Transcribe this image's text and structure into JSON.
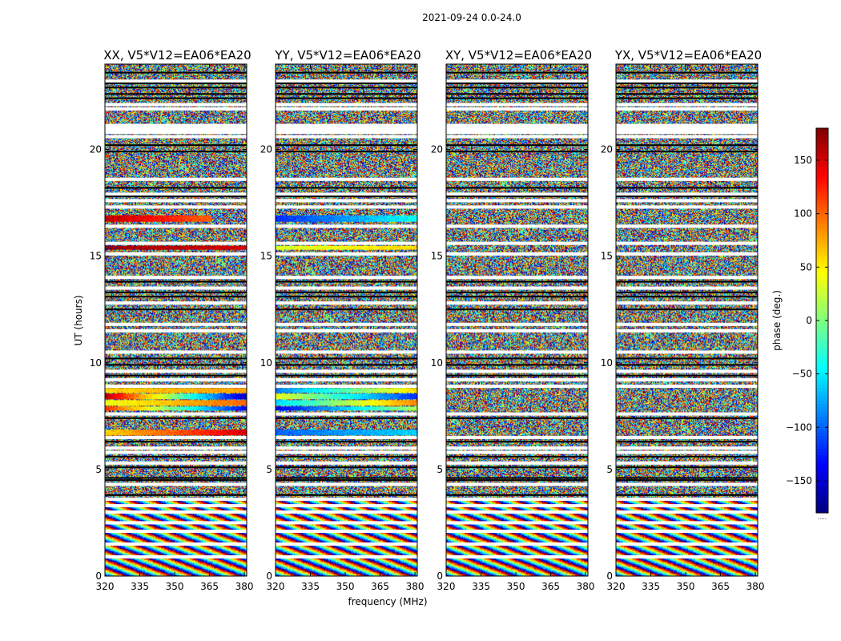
{
  "chart_data": {
    "type": "heatmap",
    "suptitle": "2021-09-24 0.0-24.0",
    "xlabel": "frequency (MHz)",
    "ylabel": "UT (hours)",
    "xlim": [
      320,
      381
    ],
    "ylim": [
      0,
      24
    ],
    "xticks": [
      320,
      335,
      350,
      365,
      380
    ],
    "yticks": [
      0,
      5,
      10,
      15,
      20
    ],
    "colormap": "jet",
    "colorbar": {
      "label": "phase (deg.)",
      "range": [
        -180,
        180
      ],
      "ticks": [
        150,
        100,
        50,
        0,
        -50,
        -100,
        -150
      ],
      "tick_labels": [
        "150",
        "100",
        "50",
        "0",
        "−50",
        "−100",
        "−150"
      ],
      "footer": "....."
    },
    "panels": [
      {
        "title": "XX, V5*V12=EA06*EA20",
        "coherent_bands": [
          {
            "ut": [
              16.6,
              16.9
            ],
            "phase_start": 160,
            "phase_end": 100,
            "freq_end": 366
          },
          {
            "ut": [
              15.3,
              15.5
            ],
            "phase_start": 170,
            "phase_end": 150,
            "freq_end": 381
          },
          {
            "ut": [
              8.6,
              8.8
            ],
            "phase_start": 60,
            "phase_end": 80,
            "freq_end": 381
          },
          {
            "ut": [
              8.3,
              8.55
            ],
            "phase_start": 160,
            "phase_end": -160,
            "freq_end": 381
          },
          {
            "ut": [
              8.0,
              8.25
            ],
            "phase_start": 40,
            "phase_end": 100,
            "freq_end": 381
          },
          {
            "ut": [
              7.75,
              7.95
            ],
            "phase_start": 120,
            "phase_end": -140,
            "freq_end": 381
          },
          {
            "ut": [
              6.6,
              6.85
            ],
            "phase_start": 60,
            "phase_end": 150,
            "freq_end": 381
          }
        ]
      },
      {
        "title": "YY, V5*V12=EA06*EA20",
        "coherent_bands": [
          {
            "ut": [
              16.6,
              16.9
            ],
            "phase_start": -120,
            "phase_end": -40,
            "freq_end": 381
          },
          {
            "ut": [
              15.3,
              15.5
            ],
            "phase_start": 30,
            "phase_end": 60,
            "freq_end": 381
          },
          {
            "ut": [
              8.6,
              8.8
            ],
            "phase_start": -90,
            "phase_end": 60,
            "freq_end": 381
          },
          {
            "ut": [
              8.3,
              8.55
            ],
            "phase_start": 40,
            "phase_end": -120,
            "freq_end": 381
          },
          {
            "ut": [
              8.0,
              8.25
            ],
            "phase_start": -60,
            "phase_end": 90,
            "freq_end": 381
          },
          {
            "ut": [
              7.75,
              7.95
            ],
            "phase_start": -140,
            "phase_end": 20,
            "freq_end": 381
          },
          {
            "ut": [
              6.6,
              6.85
            ],
            "phase_start": -100,
            "phase_end": -60,
            "freq_end": 381
          }
        ]
      },
      {
        "title": "XY, V5*V12=EA06*EA20",
        "coherent_bands": []
      },
      {
        "title": "YX, V5*V12=EA06*EA20",
        "coherent_bands": []
      }
    ],
    "flagged_gaps_ut": [
      23.2,
      22.1,
      21.9,
      20.8,
      20.6,
      18.6,
      17.9,
      17.6,
      17.3,
      16.4,
      15.6,
      15.1,
      14.0,
      13.5,
      12.8,
      11.8,
      11.5,
      10.5,
      9.6,
      9.2,
      8.9,
      7.6,
      6.5,
      6.0,
      5.8,
      5.3,
      4.3,
      3.6,
      3.3,
      3.0,
      2.5,
      2.1,
      1.5,
      0.9
    ],
    "flagged_black_ut": [
      23.6,
      23.1,
      22.9,
      22.6,
      22.4,
      20.2,
      19.9,
      18.2,
      17.8,
      13.8,
      13.3,
      13.1,
      12.5,
      10.2,
      9.9,
      9.4,
      7.4,
      6.3,
      5.6,
      5.1,
      4.6,
      4.5,
      3.8
    ]
  }
}
